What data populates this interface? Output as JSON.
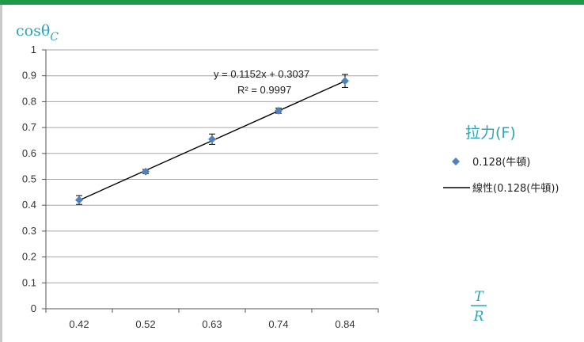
{
  "chart_data": {
    "type": "scatter",
    "y_axis_title": "cosθ",
    "y_axis_subscript": "C",
    "x_axis_title_numerator": "T",
    "x_axis_title_denominator": "R",
    "categories": [
      "0.42",
      "0.52",
      "0.63",
      "0.74",
      "0.84"
    ],
    "ylim": [
      0,
      1
    ],
    "yticks": [
      "0",
      "0.1",
      "0.2",
      "0.3",
      "0.4",
      "0.5",
      "0.6",
      "0.7",
      "0.8",
      "0.9",
      "1"
    ],
    "grid": true,
    "series": [
      {
        "name": "0.128(牛頓)",
        "values": [
          0.42,
          0.53,
          0.655,
          0.765,
          0.88
        ],
        "error": [
          0.017,
          0.008,
          0.02,
          0.01,
          0.025
        ],
        "color": "#4f81bd"
      }
    ],
    "trendline": {
      "name": "線性(0.128(牛頓))",
      "slope": 0.1152,
      "intercept": 0.3037,
      "equation": "y = 0.1152x + 0.3037",
      "r_squared": "R² = 0.9997",
      "color": "#000000"
    },
    "legend": {
      "title": "拉力(F)",
      "position": "right"
    }
  }
}
